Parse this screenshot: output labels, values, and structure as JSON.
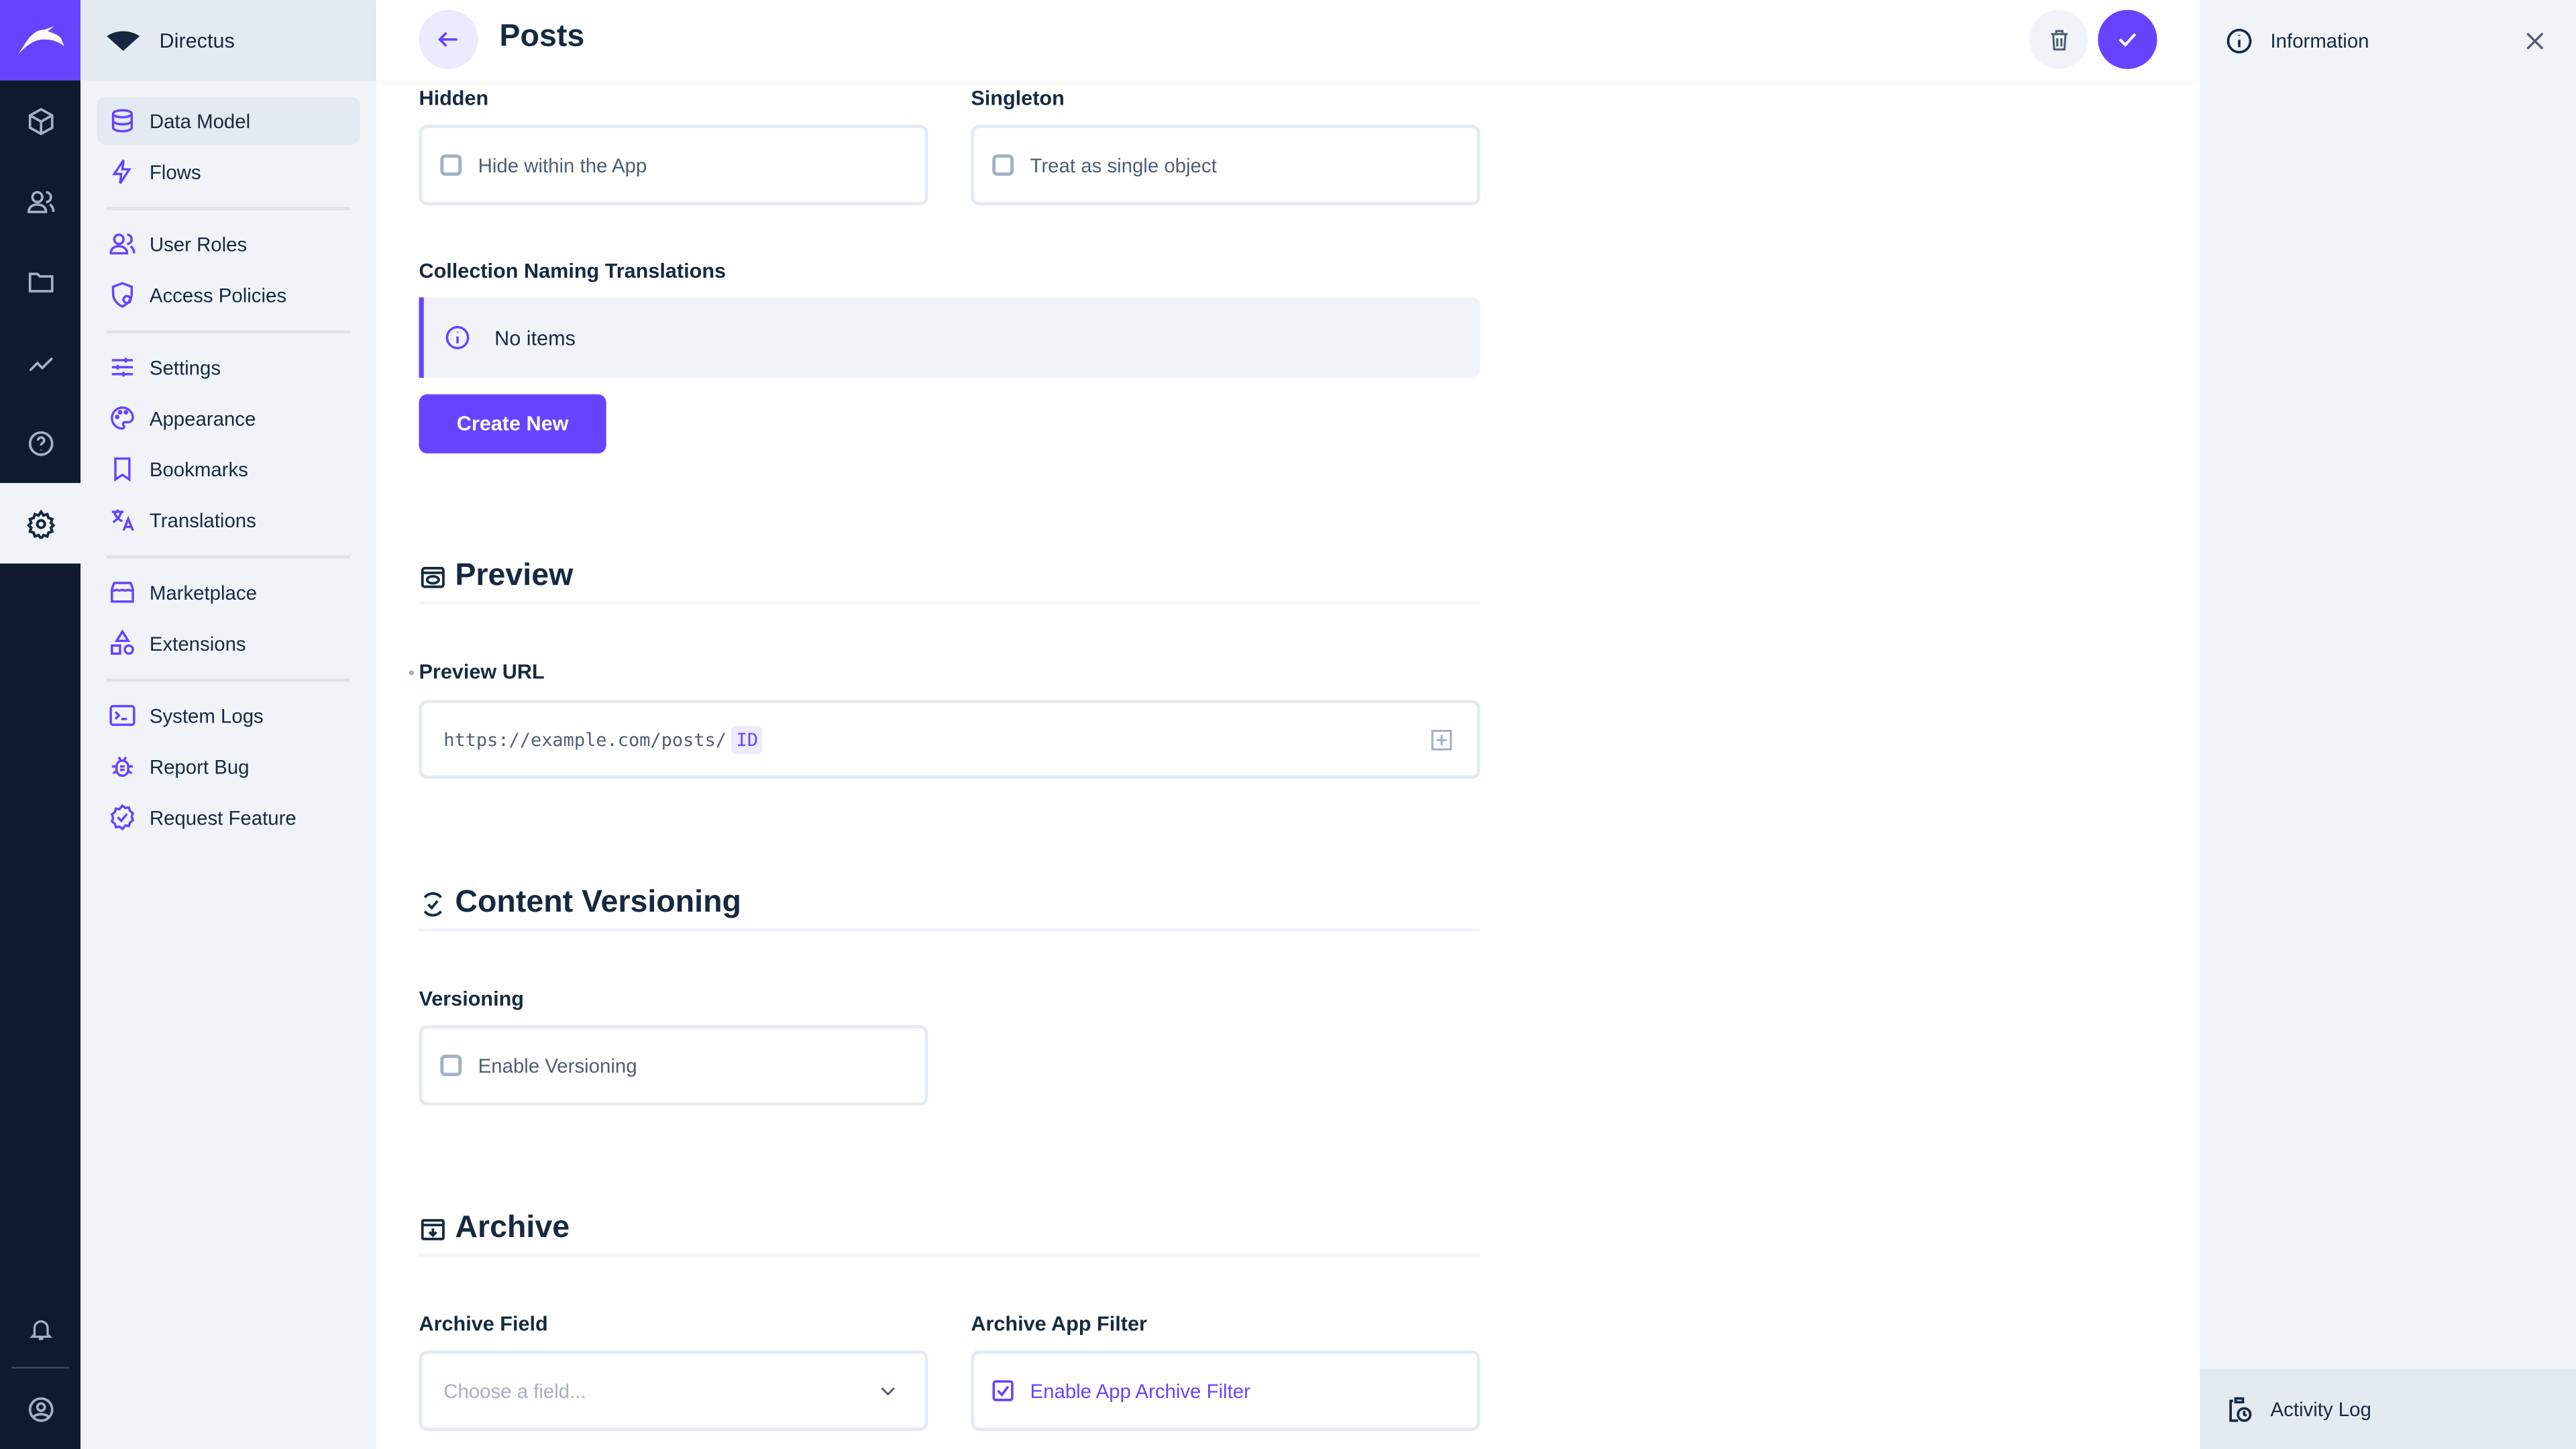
{
  "app": {
    "name": "Directus",
    "accent": "#6644ff"
  },
  "rail": {
    "items": [
      {
        "icon": "cube-icon"
      },
      {
        "icon": "users-icon"
      },
      {
        "icon": "folder-icon"
      },
      {
        "icon": "insights-icon"
      },
      {
        "icon": "help-icon"
      },
      {
        "icon": "gear-icon",
        "active": true
      }
    ],
    "bottom": [
      {
        "icon": "bell-icon"
      },
      {
        "icon": "account-icon"
      }
    ]
  },
  "nav": {
    "items": [
      {
        "label": "Data Model",
        "icon": "database-icon",
        "active": true
      },
      {
        "label": "Flows",
        "icon": "bolt-icon"
      },
      {
        "label": "User Roles",
        "icon": "users-icon"
      },
      {
        "label": "Access Policies",
        "icon": "shield-person-icon"
      },
      {
        "label": "Settings",
        "icon": "sliders-icon"
      },
      {
        "label": "Appearance",
        "icon": "palette-icon"
      },
      {
        "label": "Bookmarks",
        "icon": "bookmark-icon"
      },
      {
        "label": "Translations",
        "icon": "translate-icon"
      },
      {
        "label": "Marketplace",
        "icon": "store-icon"
      },
      {
        "label": "Extensions",
        "icon": "shapes-icon"
      },
      {
        "label": "System Logs",
        "icon": "terminal-icon"
      },
      {
        "label": "Report Bug",
        "icon": "bug-icon"
      },
      {
        "label": "Request Feature",
        "icon": "verified-icon"
      }
    ]
  },
  "header": {
    "title": "Posts"
  },
  "form": {
    "hidden": {
      "label": "Hidden",
      "option": "Hide within the App",
      "checked": false
    },
    "singleton": {
      "label": "Singleton",
      "option": "Treat as single object",
      "checked": false
    },
    "translations": {
      "label": "Collection Naming Translations",
      "notice": "No items",
      "create": "Create New"
    },
    "preview": {
      "section": "Preview",
      "label": "Preview URL",
      "url": "https://example.com/posts/",
      "tag": "ID"
    },
    "versioning_section": {
      "section": "Content Versioning",
      "label": "Versioning",
      "option": "Enable Versioning",
      "checked": false
    },
    "archive": {
      "section": "Archive",
      "field_label": "Archive Field",
      "field_placeholder": "Choose a field...",
      "filter_label": "Archive App Filter",
      "filter_option": "Enable App Archive Filter",
      "filter_checked": true
    }
  },
  "sidebar": {
    "info": "Information",
    "activity": "Activity Log"
  }
}
